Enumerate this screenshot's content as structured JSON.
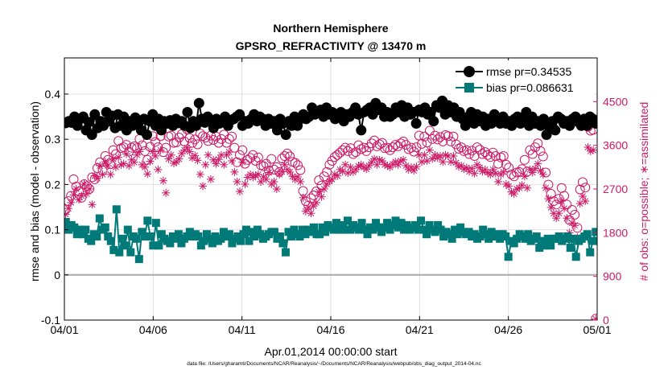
{
  "chart_data": {
    "type": "line",
    "title": "Northern Hemisphere",
    "subtitle": "GPSRO_REFRACTIVITY @ 13470 m",
    "xlabel": "Apr.01,2014 00:00:00 start",
    "ylabel": "rmse and bias (model - observation)",
    "y2label": "# of obs: o=possible; ∗=assimilated",
    "x_ticks": [
      "04/01",
      "04/06",
      "04/11",
      "04/16",
      "04/21",
      "04/26",
      "05/01"
    ],
    "x_range_days": [
      0,
      30
    ],
    "ylim": [
      -0.1,
      0.48
    ],
    "y_ticks": [
      "-0.1",
      "0",
      "0.1",
      "0.2",
      "0.3",
      "0.4"
    ],
    "y2lim": [
      0,
      5400
    ],
    "y2_ticks": [
      "0",
      "900",
      "1800",
      "2700",
      "3600",
      "4500"
    ],
    "zero_line": 0,
    "legend_position": "top-right",
    "series": [
      {
        "name": "rmse pr=0.34535",
        "axis": "left",
        "marker": "circle",
        "color": "#000000",
        "values": [
          0.336,
          0.34,
          0.337,
          0.35,
          0.33,
          0.345,
          0.35,
          0.32,
          0.338,
          0.31,
          0.355,
          0.325,
          0.34,
          0.33,
          0.36,
          0.34,
          0.352,
          0.325,
          0.355,
          0.33,
          0.35,
          0.32,
          0.34,
          0.33,
          0.348,
          0.335,
          0.32,
          0.345,
          0.31,
          0.34,
          0.355,
          0.33,
          0.345,
          0.32,
          0.34,
          0.335,
          0.342,
          0.33,
          0.345,
          0.336,
          0.34,
          0.33,
          0.36,
          0.325,
          0.34,
          0.33,
          0.38,
          0.345,
          0.337,
          0.35,
          0.34,
          0.325,
          0.345,
          0.335,
          0.34,
          0.35,
          0.33,
          0.342,
          0.345,
          0.35,
          0.355,
          0.33,
          0.34,
          0.335,
          0.345,
          0.355,
          0.34,
          0.35,
          0.345,
          0.33,
          0.345,
          0.335,
          0.34,
          0.32,
          0.345,
          0.335,
          0.31,
          0.34,
          0.33,
          0.35,
          0.33,
          0.345,
          0.355,
          0.345,
          0.35,
          0.37,
          0.355,
          0.36,
          0.365,
          0.35,
          0.37,
          0.355,
          0.36,
          0.345,
          0.355,
          0.36,
          0.34,
          0.355,
          0.35,
          0.36,
          0.37,
          0.355,
          0.32,
          0.36,
          0.365,
          0.37,
          0.355,
          0.38,
          0.365,
          0.37,
          0.35,
          0.36,
          0.35,
          0.355,
          0.37,
          0.36,
          0.375,
          0.35,
          0.37,
          0.355,
          0.36,
          0.335,
          0.365,
          0.36,
          0.37,
          0.355,
          0.36,
          0.34,
          0.375,
          0.37,
          0.385,
          0.355,
          0.375,
          0.36,
          0.37,
          0.35,
          0.36,
          0.345,
          0.33,
          0.35,
          0.36,
          0.335,
          0.355,
          0.34,
          0.35,
          0.33,
          0.345,
          0.335,
          0.355,
          0.34,
          0.335,
          0.35,
          0.335,
          0.34,
          0.33,
          0.345,
          0.35,
          0.335,
          0.34,
          0.36,
          0.33,
          0.35,
          0.335,
          0.34,
          0.33,
          0.345,
          0.31,
          0.33,
          0.34,
          0.32,
          0.35,
          0.345,
          0.335,
          0.34,
          0.33,
          0.345,
          0.35,
          0.338,
          0.33,
          0.345,
          0.33,
          0.35,
          0.345,
          0.335
        ]
      },
      {
        "name": "bias pr=0.086631",
        "axis": "left",
        "marker": "square",
        "color": "#007a78",
        "values": [
          0.117,
          0.1,
          0.11,
          0.105,
          0.09,
          0.1,
          0.09,
          0.1,
          0.08,
          0.075,
          0.09,
          0.085,
          0.125,
          0.1,
          0.105,
          0.085,
          0.075,
          0.055,
          0.145,
          0.05,
          0.08,
          0.065,
          0.1,
          0.05,
          0.085,
          0.08,
          0.035,
          0.095,
          0.085,
          0.12,
          0.085,
          0.065,
          0.115,
          0.065,
          0.09,
          0.08,
          0.075,
          0.07,
          0.085,
          0.08,
          0.09,
          0.07,
          0.08,
          0.085,
          0.095,
          0.085,
          0.09,
          0.085,
          0.065,
          0.075,
          0.09,
          0.08,
          0.07,
          0.085,
          0.075,
          0.08,
          0.095,
          0.085,
          0.09,
          0.07,
          0.08,
          0.085,
          0.075,
          0.09,
          0.1,
          0.075,
          0.095,
          0.085,
          0.1,
          0.09,
          0.08,
          0.085,
          0.09,
          0.095,
          0.095,
          0.08,
          0.085,
          0.07,
          0.05,
          0.095,
          0.085,
          0.1,
          0.09,
          0.085,
          0.1,
          0.09,
          0.1,
          0.095,
          0.105,
          0.09,
          0.09,
          0.105,
          0.095,
          0.11,
          0.105,
          0.1,
          0.115,
          0.1,
          0.11,
          0.1,
          0.12,
          0.1,
          0.11,
          0.105,
          0.1,
          0.115,
          0.1,
          0.09,
          0.105,
          0.1,
          0.115,
          0.105,
          0.095,
          0.105,
          0.115,
          0.1,
          0.11,
          0.12,
          0.105,
          0.115,
          0.1,
          0.11,
          0.1,
          0.105,
          0.11,
          0.1,
          0.12,
          0.1,
          0.09,
          0.11,
          0.1,
          0.095,
          0.11,
          0.1,
          0.085,
          0.095,
          0.09,
          0.08,
          0.1,
          0.09,
          0.105,
          0.095,
          0.09,
          0.095,
          0.085,
          0.09,
          0.08,
          0.085,
          0.1,
          0.09,
          0.08,
          0.095,
          0.085,
          0.09,
          0.08,
          0.09,
          0.085,
          0.04,
          0.075,
          0.07,
          0.08,
          0.09,
          0.085,
          0.08,
          0.09,
          0.075,
          0.08,
          0.085,
          0.06,
          0.075,
          0.065,
          0.08,
          0.065,
          0.08,
          0.08,
          0.085,
          0.075,
          0.08,
          0.085,
          0.06,
          0.08,
          0.04,
          0.075,
          0.08,
          0.085,
          0.09,
          0.05,
          0.075,
          0.095
        ]
      },
      {
        "name": "possible obs",
        "axis": "right",
        "marker": "open-circle",
        "color": "#cc1a66",
        "values": [
          2280,
          2450,
          2560,
          2900,
          2750,
          2650,
          2520,
          2800,
          2760,
          2700,
          2940,
          2900,
          3130,
          3250,
          3080,
          3380,
          3300,
          3210,
          3500,
          3420,
          3690,
          3540,
          3560,
          3610,
          3470,
          3550,
          3580,
          3540,
          3730,
          3600,
          3480,
          3300,
          3570,
          3790,
          3670,
          3560,
          3790,
          3460,
          3550,
          3780,
          3800,
          3650,
          3660,
          3760,
          3830,
          3680,
          3930,
          3750,
          3650,
          3720,
          3620,
          3840,
          3790,
          3760,
          3690,
          3800,
          3710,
          3780,
          3650,
          3730,
          3820,
          3650,
          3730,
          3780,
          3550,
          3250,
          3400,
          3500,
          3220,
          3300,
          3340,
          3400,
          3280,
          3350,
          3190,
          3170,
          3220,
          3080,
          3320,
          3100,
          3150,
          3050,
          3330,
          3380,
          3430,
          3370,
          3260,
          3240,
          3190,
          3090,
          2660,
          2450,
          2360,
          2510,
          2570,
          2650,
          2880,
          2770,
          2960,
          3050,
          3200,
          3280,
          3360,
          3400,
          3450,
          3500,
          3550,
          3480,
          3540,
          3420,
          3460,
          3600,
          3520,
          3550,
          3480,
          3560,
          3640,
          3700,
          3580,
          3620,
          3650,
          3540,
          3550,
          3500,
          3560,
          3610,
          3580,
          3640,
          3680,
          3610,
          3520,
          3550,
          3470,
          3560,
          3800,
          3630,
          3780,
          3660,
          3900,
          3730,
          3800,
          3720,
          3770,
          3680,
          3810,
          3790,
          3680,
          3780,
          3620,
          3530,
          3560,
          3480,
          3500,
          3420,
          3490,
          3380,
          3560,
          3510,
          3420,
          3460,
          3400,
          3360,
          3450,
          3380,
          3220,
          3350,
          3380,
          3200,
          3140,
          3000,
          2960,
          3040,
          3050,
          3110,
          3300,
          3060,
          3500,
          3420,
          3560,
          3640,
          3480,
          3370,
          3040,
          2790,
          2600,
          2450,
          2380,
          2500,
          2720,
          2560,
          2380,
          2060,
          2270,
          2170,
          1900,
          2690,
          2840,
          2730,
          3980,
          3900,
          3920,
          30
        ]
      },
      {
        "name": "assimilated obs",
        "axis": "right",
        "marker": "asterisk",
        "color": "#cc1a66",
        "values": [
          2180,
          2300,
          2420,
          2580,
          2700,
          2480,
          2560,
          2800,
          2600,
          2700,
          2380,
          2970,
          2920,
          3180,
          3000,
          3260,
          3180,
          3000,
          3320,
          3150,
          3350,
          3200,
          3220,
          3420,
          3180,
          3300,
          3250,
          3400,
          3470,
          3200,
          3150,
          3010,
          3270,
          3470,
          3380,
          3100,
          3500,
          2870,
          2620,
          3320,
          3400,
          3230,
          3260,
          3320,
          3430,
          3500,
          3550,
          3470,
          3340,
          3390,
          3290,
          3000,
          2760,
          3200,
          3400,
          2900,
          3300,
          3220,
          3310,
          3400,
          3200,
          3400,
          3460,
          3280,
          3050,
          2850,
          2650,
          3250,
          2800,
          2940,
          3000,
          2940,
          2980,
          3000,
          2850,
          2950,
          2900,
          3040,
          2800,
          2850,
          2700,
          3000,
          3060,
          3200,
          3100,
          3050,
          2960,
          2900,
          2950,
          2850,
          2520,
          2240,
          2320,
          2200,
          2350,
          2420,
          2640,
          2540,
          2700,
          2800,
          2860,
          2900,
          3000,
          2970,
          3100,
          3060,
          3200,
          3030,
          3150,
          3050,
          3100,
          3170,
          3200,
          3150,
          3110,
          3180,
          3250,
          3320,
          3200,
          3300,
          3280,
          3200,
          3180,
          3150,
          3210,
          3260,
          3200,
          3280,
          3300,
          3180,
          3100,
          3150,
          3080,
          3160,
          3400,
          3260,
          3400,
          3280,
          3500,
          3320,
          3400,
          3340,
          3380,
          3260,
          3400,
          3380,
          3260,
          3380,
          3240,
          3160,
          3180,
          3110,
          3140,
          3060,
          3120,
          3020,
          3200,
          3140,
          3060,
          3100,
          3040,
          3000,
          3100,
          3020,
          2850,
          3000,
          3050,
          2800,
          2760,
          2640,
          2600,
          2700,
          2720,
          2780,
          2960,
          2720,
          3100,
          3040,
          3120,
          3220,
          3080,
          3000,
          2720,
          2500,
          2320,
          2200,
          2100,
          2200,
          2450,
          2300,
          2100,
          1800,
          2000,
          1950,
          1700,
          2400,
          2550,
          2450,
          3560,
          3480,
          3500,
          20
        ]
      }
    ]
  },
  "footer": {
    "data_file": "data file: /Users/gharamti/Documents/NCAR/Reanalysis/~/Documents/NCAR/Reanalysis/webpub/obs_diag_output_2014-04.nc"
  }
}
